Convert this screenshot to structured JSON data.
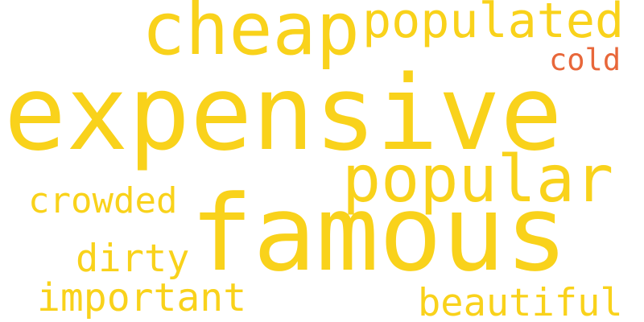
{
  "colors": {
    "background": "#ffffff",
    "yellow": "#f9d21b",
    "orange": "#e8673a"
  },
  "words": [
    {
      "id": "expensive",
      "text": "expensive",
      "color": "#f9d21b"
    },
    {
      "id": "famous",
      "text": "famous",
      "color": "#f9d21b"
    },
    {
      "id": "cheap",
      "text": "cheap",
      "color": "#f9d21b"
    },
    {
      "id": "populated",
      "text": "populated",
      "color": "#f9d21b"
    },
    {
      "id": "popular",
      "text": "popular",
      "color": "#f9d21b"
    },
    {
      "id": "cold",
      "text": "cold",
      "color": "#e8673a"
    },
    {
      "id": "crowded",
      "text": "crowded",
      "color": "#f9d21b"
    },
    {
      "id": "dirty",
      "text": "dirty",
      "color": "#f9d21b"
    },
    {
      "id": "important",
      "text": "important",
      "color": "#f9d21b"
    },
    {
      "id": "beautiful",
      "text": "beautiful",
      "color": "#f9d21b"
    }
  ]
}
